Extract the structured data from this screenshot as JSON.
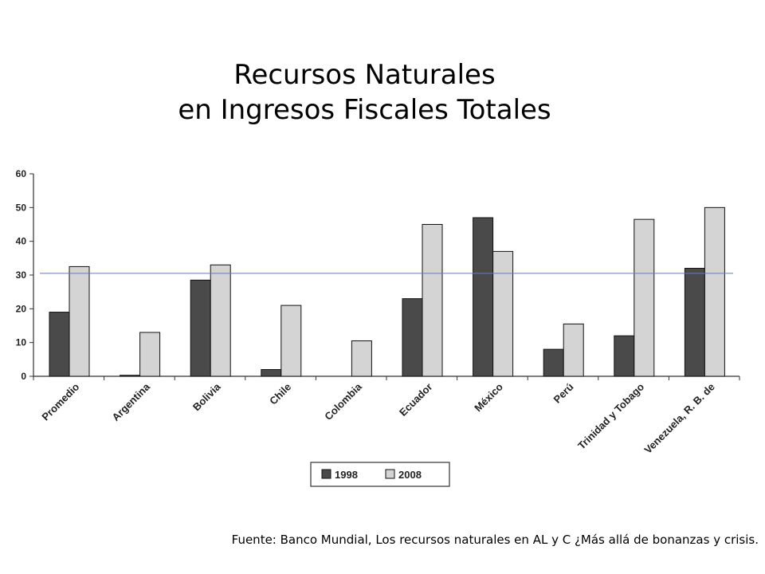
{
  "title_line1": "Recursos Naturales",
  "title_line2": "en Ingresos Fiscales Totales",
  "source": "Fuente: Banco Mundial, Los recursos naturales en AL y C ¿Más allá de bonanzas y crisis.",
  "chart_data": {
    "type": "bar",
    "categories": [
      "Promedio",
      "Argentina",
      "Bolivia",
      "Chile",
      "Colombia",
      "Ecuador",
      "México",
      "Perú",
      "Trinidad y Tobago",
      "Venezuela, R. B. de"
    ],
    "series": [
      {
        "name": "1998",
        "color": "#4a4a4a",
        "values": [
          19,
          0.3,
          28.5,
          2,
          0,
          23,
          47,
          8,
          12,
          32
        ]
      },
      {
        "name": "2008",
        "color": "#d4d4d4",
        "values": [
          32.5,
          13,
          33,
          21,
          10.5,
          45,
          37,
          15.5,
          46.5,
          50
        ]
      }
    ],
    "yticks": [
      0,
      10,
      20,
      30,
      40,
      50,
      60
    ],
    "ylim": [
      0,
      60
    ],
    "reference_line": {
      "value": 30.5,
      "color": "#5b7fbf"
    },
    "legend_position": "bottom"
  }
}
